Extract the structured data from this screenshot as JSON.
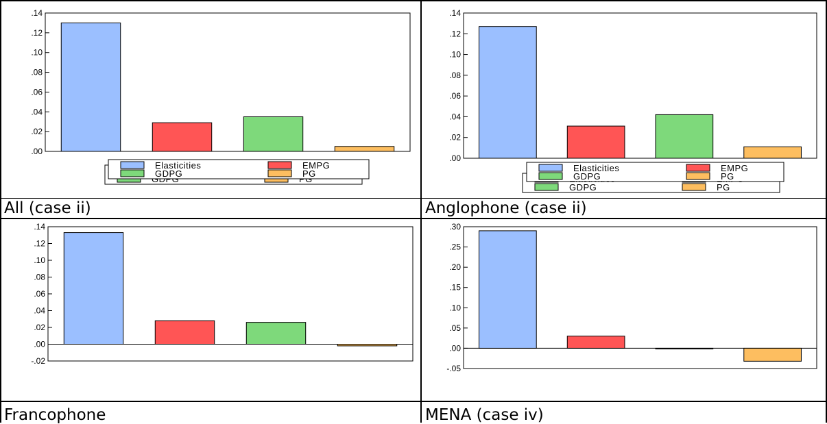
{
  "colors": {
    "Elasticities": "#9BBFFF",
    "EMPG": "#FF5555",
    "GDPG": "#7ED97B",
    "PG": "#FDBE60"
  },
  "legend_labels": [
    "Elasticities",
    "EMPG",
    "GDPG",
    "PG"
  ],
  "chart_data": [
    {
      "type": "bar",
      "categories": [
        "Elasticities",
        "EMPG",
        "GDPG",
        "PG"
      ],
      "values": [
        0.13,
        0.029,
        0.035,
        0.005
      ],
      "ylim": [
        0,
        0.14
      ],
      "yticks": [
        0,
        0.02,
        0.04,
        0.06,
        0.08,
        0.1,
        0.12,
        0.14
      ],
      "ytick_labels": [
        ".00",
        ".02",
        ".04",
        ".06",
        ".08",
        ".10",
        ".12",
        ".14"
      ],
      "legend": "bottom-center",
      "grid": false,
      "caption": "All (case ii)"
    },
    {
      "type": "bar",
      "categories": [
        "Elasticities",
        "EMPG",
        "GDPG",
        "PG"
      ],
      "values": [
        0.127,
        0.031,
        0.042,
        0.011
      ],
      "ylim": [
        0,
        0.14
      ],
      "yticks": [
        0,
        0.02,
        0.04,
        0.06,
        0.08,
        0.1,
        0.12,
        0.14
      ],
      "ytick_labels": [
        ".00",
        ".02",
        ".04",
        ".06",
        ".08",
        ".10",
        ".12",
        ".14"
      ],
      "legend": "bottom-center",
      "grid": false,
      "caption": "Anglophone (case ii)"
    },
    {
      "type": "bar",
      "categories": [
        "Elasticities",
        "EMPG",
        "GDPG",
        "PG"
      ],
      "values": [
        0.133,
        0.028,
        0.026,
        -0.002
      ],
      "ylim": [
        -0.02,
        0.14
      ],
      "yticks": [
        -0.02,
        0,
        0.02,
        0.04,
        0.06,
        0.08,
        0.1,
        0.12,
        0.14
      ],
      "ytick_labels": [
        "-.02",
        ".00",
        ".02",
        ".04",
        ".06",
        ".08",
        ".10",
        ".12",
        ".14"
      ],
      "legend": "bottom-center",
      "grid": false,
      "caption": "Francophone"
    },
    {
      "type": "bar",
      "categories": [
        "Elasticities",
        "EMPG",
        "GDPG",
        "PG"
      ],
      "values": [
        0.29,
        0.03,
        -0.001,
        -0.032
      ],
      "ylim": [
        -0.05,
        0.3
      ],
      "yticks": [
        -0.05,
        0,
        0.05,
        0.1,
        0.15,
        0.2,
        0.25,
        0.3
      ],
      "ytick_labels": [
        "-.05",
        ".00",
        ".05",
        ".10",
        ".15",
        ".20",
        ".25",
        ".30"
      ],
      "legend": "bottom-center",
      "grid": false,
      "caption": "MENA (case iv)"
    }
  ]
}
